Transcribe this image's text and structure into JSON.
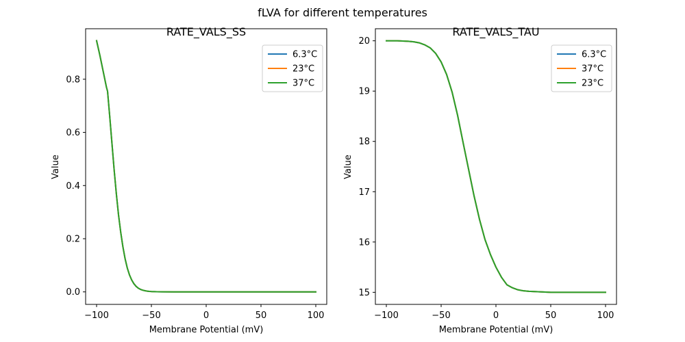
{
  "figure": {
    "title": "fLVA for different temperatures"
  },
  "chart_data": [
    {
      "type": "line",
      "title": "RATE_VALS_SS",
      "xlabel": "Membrane Potential (mV)",
      "ylabel": "Value",
      "xlim": [
        -110,
        110
      ],
      "ylim": [
        -0.047,
        0.99
      ],
      "xticks": [
        -100,
        -50,
        0,
        50,
        100
      ],
      "xtick_labels": [
        "−100",
        "−50",
        "0",
        "50",
        "100"
      ],
      "yticks": [
        0.0,
        0.2,
        0.4,
        0.6,
        0.8
      ],
      "ytick_labels": [
        "0.0",
        "0.2",
        "0.4",
        "0.6",
        "0.8"
      ],
      "grid": false,
      "legend_position": "top-right",
      "x": [
        -100,
        -97,
        -94,
        -91,
        -90,
        -88,
        -86,
        -84,
        -82,
        -80,
        -78,
        -76,
        -74,
        -72,
        -70,
        -68,
        -66,
        -64,
        -62,
        -60,
        -58,
        -56,
        -54,
        -52,
        -50,
        -45,
        -40,
        -30,
        -20,
        0,
        25,
        50,
        75,
        100
      ],
      "series": [
        {
          "name": "6.3°C",
          "color": "#1f77b4",
          "values": [
            0.945,
            0.89,
            0.83,
            0.77,
            0.755,
            0.66,
            0.56,
            0.46,
            0.37,
            0.29,
            0.225,
            0.17,
            0.125,
            0.09,
            0.064,
            0.045,
            0.031,
            0.021,
            0.014,
            0.0095,
            0.0065,
            0.0044,
            0.003,
            0.002,
            0.0014,
            0.0006,
            0.0003,
            0.0001,
            0.0,
            0.0,
            0.0,
            0.0,
            0.0,
            0.0
          ]
        },
        {
          "name": "23°C",
          "color": "#ff7f0e",
          "values": [
            0.945,
            0.89,
            0.83,
            0.77,
            0.755,
            0.66,
            0.56,
            0.46,
            0.37,
            0.29,
            0.225,
            0.17,
            0.125,
            0.09,
            0.064,
            0.045,
            0.031,
            0.021,
            0.014,
            0.0095,
            0.0065,
            0.0044,
            0.003,
            0.002,
            0.0014,
            0.0006,
            0.0003,
            0.0001,
            0.0,
            0.0,
            0.0,
            0.0,
            0.0,
            0.0
          ]
        },
        {
          "name": "37°C",
          "color": "#2ca02c",
          "values": [
            0.945,
            0.89,
            0.83,
            0.77,
            0.755,
            0.66,
            0.56,
            0.46,
            0.37,
            0.29,
            0.225,
            0.17,
            0.125,
            0.09,
            0.064,
            0.045,
            0.031,
            0.021,
            0.014,
            0.0095,
            0.0065,
            0.0044,
            0.003,
            0.002,
            0.0014,
            0.0006,
            0.0003,
            0.0001,
            0.0,
            0.0,
            0.0,
            0.0,
            0.0,
            0.0
          ]
        }
      ]
    },
    {
      "type": "line",
      "title": "RATE_VALS_TAU",
      "xlabel": "Membrane Potential (mV)",
      "ylabel": "Value",
      "xlim": [
        -110,
        110
      ],
      "ylim": [
        14.76,
        20.24
      ],
      "xticks": [
        -100,
        -50,
        0,
        50,
        100
      ],
      "xtick_labels": [
        "−100",
        "−50",
        "0",
        "50",
        "100"
      ],
      "yticks": [
        15,
        16,
        17,
        18,
        19,
        20
      ],
      "ytick_labels": [
        "15",
        "16",
        "17",
        "18",
        "19",
        "20"
      ],
      "grid": false,
      "legend_position": "top-right",
      "x": [
        -100,
        -90,
        -80,
        -75,
        -70,
        -65,
        -60,
        -55,
        -50,
        -45,
        -40,
        -35,
        -30,
        -25,
        -20,
        -15,
        -10,
        -5,
        0,
        5,
        10,
        15,
        20,
        25,
        30,
        40,
        50,
        75,
        100
      ],
      "series": [
        {
          "name": "6.3°C",
          "color": "#1f77b4",
          "values": [
            20.0,
            20.0,
            19.99,
            19.98,
            19.96,
            19.92,
            19.86,
            19.75,
            19.58,
            19.33,
            18.98,
            18.52,
            17.98,
            17.45,
            16.92,
            16.45,
            16.05,
            15.75,
            15.5,
            15.3,
            15.15,
            15.09,
            15.05,
            15.03,
            15.02,
            15.01,
            15.0,
            15.0,
            15.0
          ]
        },
        {
          "name": "37°C",
          "color": "#ff7f0e",
          "values": [
            20.0,
            20.0,
            19.99,
            19.98,
            19.96,
            19.92,
            19.86,
            19.75,
            19.58,
            19.33,
            18.98,
            18.52,
            17.98,
            17.45,
            16.92,
            16.45,
            16.05,
            15.75,
            15.5,
            15.3,
            15.15,
            15.09,
            15.05,
            15.03,
            15.02,
            15.01,
            15.0,
            15.0,
            15.0
          ]
        },
        {
          "name": "23°C",
          "color": "#2ca02c",
          "values": [
            20.0,
            20.0,
            19.99,
            19.98,
            19.96,
            19.92,
            19.86,
            19.75,
            19.58,
            19.33,
            18.98,
            18.52,
            17.98,
            17.45,
            16.92,
            16.45,
            16.05,
            15.75,
            15.5,
            15.3,
            15.15,
            15.09,
            15.05,
            15.03,
            15.02,
            15.01,
            15.0,
            15.0,
            15.0
          ]
        }
      ]
    }
  ]
}
